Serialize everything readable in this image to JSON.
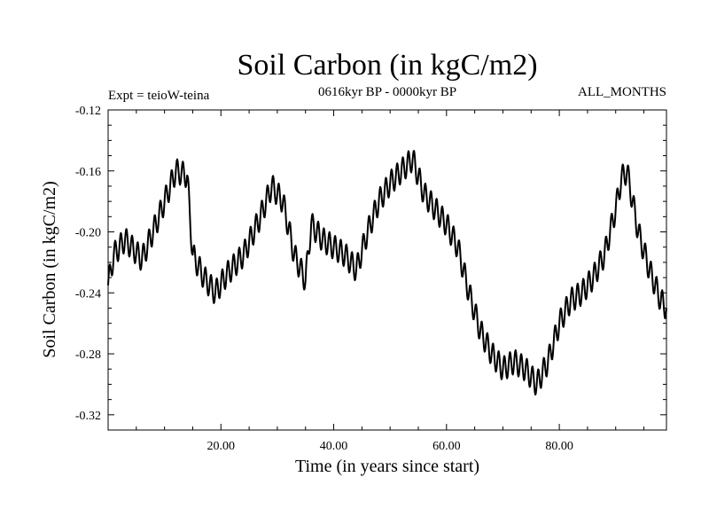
{
  "chart_data": {
    "type": "line",
    "title": "Soil Carbon (in kgC/m2)",
    "expt_label": "Expt = teioW-teina",
    "period_label": "0616kyr BP - 0000kyr BP",
    "months_label": "ALL_MONTHS",
    "xlabel": "Time (in years since start)",
    "ylabel": "Soil Carbon (in kgC/m2)",
    "xlim": [
      0,
      99
    ],
    "ylim": [
      -0.33,
      -0.12
    ],
    "xticks": [
      20,
      40,
      60,
      80
    ],
    "xtick_labels": [
      "20.00",
      "40.00",
      "60.00",
      "80.00"
    ],
    "yticks": [
      -0.12,
      -0.16,
      -0.2,
      -0.24,
      -0.28,
      -0.32
    ],
    "ytick_labels": [
      "-0.12",
      "-0.16",
      "-0.20",
      "-0.24",
      "-0.28",
      "-0.32"
    ],
    "seasonal_amplitude": 0.008,
    "series": [
      {
        "name": "Soil Carbon",
        "color": "#000000",
        "trend_x": [
          0,
          1,
          3,
          6,
          9,
          11,
          12,
          14,
          15,
          17,
          19,
          21,
          24,
          27,
          29,
          31,
          33,
          35,
          36,
          38,
          40,
          42,
          44,
          46,
          48,
          50,
          52,
          54,
          56,
          58,
          60,
          62,
          64,
          66,
          68,
          70,
          72,
          74,
          76,
          78,
          80,
          82,
          84,
          86,
          88,
          90,
          91,
          92,
          94,
          96,
          98,
          99
        ],
        "trend_y": [
          -0.235,
          -0.215,
          -0.205,
          -0.218,
          -0.19,
          -0.17,
          -0.16,
          -0.163,
          -0.215,
          -0.23,
          -0.24,
          -0.228,
          -0.215,
          -0.19,
          -0.17,
          -0.18,
          -0.215,
          -0.232,
          -0.195,
          -0.205,
          -0.21,
          -0.215,
          -0.225,
          -0.2,
          -0.18,
          -0.168,
          -0.16,
          -0.152,
          -0.175,
          -0.185,
          -0.195,
          -0.21,
          -0.24,
          -0.265,
          -0.28,
          -0.29,
          -0.285,
          -0.29,
          -0.3,
          -0.285,
          -0.26,
          -0.245,
          -0.24,
          -0.23,
          -0.215,
          -0.185,
          -0.165,
          -0.16,
          -0.2,
          -0.225,
          -0.245,
          -0.25
        ]
      }
    ]
  }
}
